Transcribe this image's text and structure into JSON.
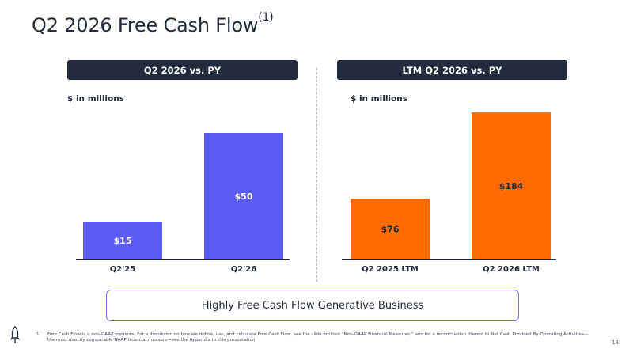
{
  "title": {
    "text": "Q2 2026 Free Cash Flow",
    "superscript": "(1)"
  },
  "left_panel": {
    "header": "Q2 2026 vs. PY",
    "unit": "$ in millions"
  },
  "right_panel": {
    "header": "LTM Q2 2026 vs. PY",
    "unit": "$ in millions"
  },
  "banner": "Highly Free Cash Flow Generative Business",
  "footnote": {
    "number": "1.",
    "text": "Free Cash Flow is a non-GAAP measure. For a discussion on how we define, use, and calculate Free Cash Flow, see the slide entitled “Non-GAAP Financial Measures,” and for a reconciliation thereof to Net Cash Provided By Operating Activities—the most directly comparable GAAP financial measure—see the Appendix to this presentation."
  },
  "page_number": "18",
  "colors": {
    "left_bars": "#5b5cf6",
    "right_bars": "#ff6b00",
    "header_bg": "#222b3c",
    "text": "#1f2a3c"
  },
  "chart_data": [
    {
      "type": "bar",
      "title": "Q2 2026 vs. PY",
      "ylabel": "$ in millions",
      "categories": [
        "Q2'25",
        "Q2'26"
      ],
      "values": [
        15,
        50
      ],
      "labels": [
        "$15",
        "$50"
      ],
      "ylim": [
        0,
        60
      ],
      "color": "#5b5cf6"
    },
    {
      "type": "bar",
      "title": "LTM Q2 2026 vs. PY",
      "ylabel": "$ in millions",
      "categories": [
        "Q2 2025 LTM",
        "Q2 2026 LTM"
      ],
      "values": [
        76,
        184
      ],
      "labels": [
        "$76",
        "$184"
      ],
      "ylim": [
        0,
        190
      ],
      "color": "#ff6b00"
    }
  ]
}
